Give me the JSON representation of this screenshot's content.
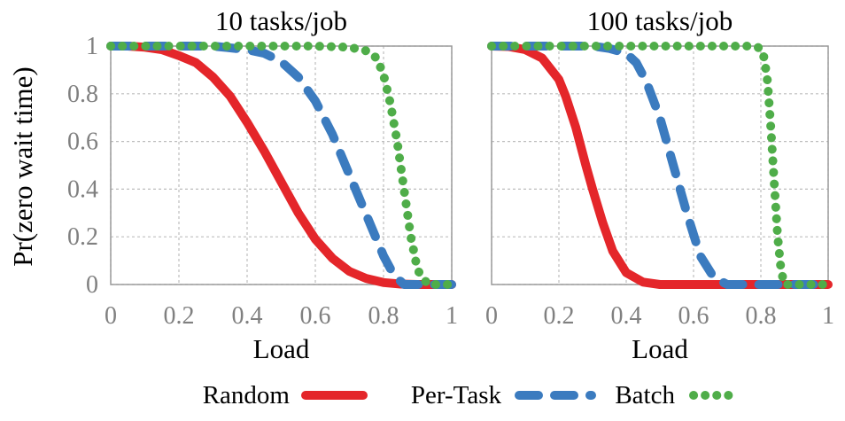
{
  "chart_data": {
    "type": "line",
    "ylabel": "Pr(zero wait time)",
    "xlabel": "Load",
    "xlim": [
      0,
      1
    ],
    "ylim": [
      0,
      1
    ],
    "grid": true,
    "x_ticks": [
      "0",
      "0.2",
      "0.4",
      "0.6",
      "0.8",
      "1"
    ],
    "y_ticks": [
      "0",
      "0.2",
      "0.4",
      "0.6",
      "0.8",
      "1"
    ],
    "legend": {
      "placement": "bottom-center",
      "entries": [
        {
          "name": "Random",
          "color": "#e4262a",
          "style": "solid"
        },
        {
          "name": "Per-Task",
          "color": "#3b7bbf",
          "style": "dashed"
        },
        {
          "name": "Batch",
          "color": "#4fad49",
          "style": "dotted"
        }
      ]
    },
    "panels": [
      {
        "title": "10 tasks/job",
        "series": [
          {
            "name": "Random",
            "x": [
              0,
              0.05,
              0.1,
              0.15,
              0.2,
              0.25,
              0.3,
              0.35,
              0.4,
              0.45,
              0.5,
              0.55,
              0.6,
              0.65,
              0.7,
              0.75,
              0.8,
              0.85,
              0.9,
              0.95,
              1.0
            ],
            "y": [
              1.0,
              1.0,
              0.995,
              0.985,
              0.96,
              0.93,
              0.87,
              0.79,
              0.68,
              0.56,
              0.43,
              0.3,
              0.19,
              0.11,
              0.055,
              0.025,
              0.008,
              0.002,
              0.0,
              0.0,
              0.0
            ]
          },
          {
            "name": "Per-Task",
            "x": [
              0,
              0.1,
              0.2,
              0.3,
              0.4,
              0.45,
              0.5,
              0.55,
              0.6,
              0.65,
              0.7,
              0.75,
              0.8,
              0.83,
              0.86,
              0.9,
              1.0
            ],
            "y": [
              1.0,
              1.0,
              1.0,
              1.0,
              0.985,
              0.97,
              0.935,
              0.87,
              0.77,
              0.63,
              0.46,
              0.29,
              0.12,
              0.04,
              0.0,
              0.0,
              0.0
            ]
          },
          {
            "name": "Batch",
            "x": [
              0,
              0.2,
              0.4,
              0.6,
              0.7,
              0.75,
              0.78,
              0.8,
              0.82,
              0.84,
              0.86,
              0.88,
              0.9,
              0.93,
              1.0
            ],
            "y": [
              1.0,
              1.0,
              1.0,
              1.0,
              0.995,
              0.98,
              0.95,
              0.88,
              0.76,
              0.6,
              0.4,
              0.2,
              0.06,
              0.0,
              0.0
            ]
          }
        ]
      },
      {
        "title": "100 tasks/job",
        "series": [
          {
            "name": "Random",
            "x": [
              0,
              0.05,
              0.1,
              0.15,
              0.2,
              0.22,
              0.25,
              0.28,
              0.3,
              0.33,
              0.36,
              0.4,
              0.45,
              0.5,
              0.6,
              1.0
            ],
            "y": [
              1.0,
              0.998,
              0.985,
              0.95,
              0.86,
              0.79,
              0.66,
              0.5,
              0.4,
              0.26,
              0.14,
              0.05,
              0.01,
              0.0,
              0.0,
              0.0
            ]
          },
          {
            "name": "Per-Task",
            "x": [
              0,
              0.2,
              0.3,
              0.35,
              0.4,
              0.43,
              0.46,
              0.5,
              0.54,
              0.58,
              0.62,
              0.66,
              0.7,
              0.75,
              1.0
            ],
            "y": [
              1.0,
              1.0,
              1.0,
              0.99,
              0.97,
              0.93,
              0.85,
              0.7,
              0.5,
              0.3,
              0.12,
              0.03,
              0.0,
              0.0,
              0.0
            ]
          },
          {
            "name": "Batch",
            "x": [
              0,
              0.4,
              0.7,
              0.78,
              0.8,
              0.81,
              0.82,
              0.83,
              0.84,
              0.85,
              0.86,
              0.87,
              0.9,
              1.0
            ],
            "y": [
              1.0,
              1.0,
              1.0,
              1.0,
              0.99,
              0.95,
              0.85,
              0.65,
              0.42,
              0.2,
              0.06,
              0.0,
              0.0,
              0.0
            ]
          }
        ]
      }
    ]
  }
}
